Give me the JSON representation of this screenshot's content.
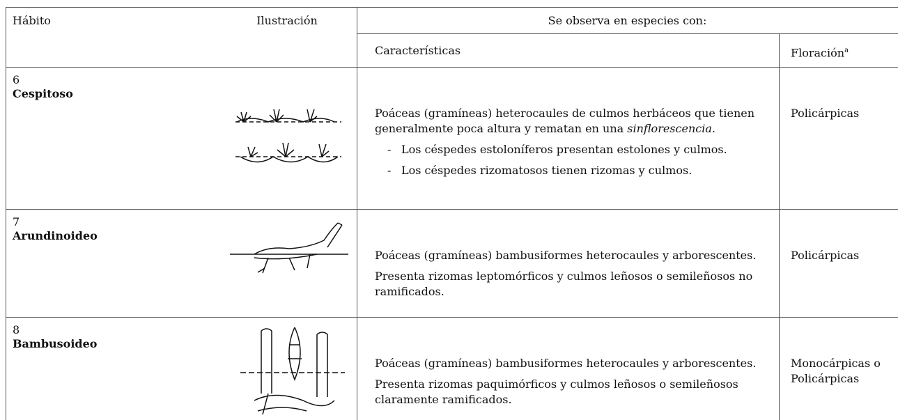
{
  "header": {
    "habit": "Hábito",
    "illustration": "Ilustración",
    "observed": "Se observa en especies con:",
    "features": "Características",
    "flowering": "Floración",
    "flowering_note": "a"
  },
  "bullet_marker": "-",
  "rows": [
    {
      "number": "6",
      "name": "Cespitoso",
      "description": {
        "before": "Poáceas (gramíneas) heterocaules de culmos herbáceos que tienen generalmente poca altura y rematan en una ",
        "italic": "sinflorescencia",
        "after": "."
      },
      "bullets": [
        "Los céspedes estoloníferos presentan estolones y culmos.",
        "Los céspedes rizomatosos tienen rizomas y culmos."
      ],
      "paragraphs": [],
      "flowering": [
        "Policárpicas"
      ]
    },
    {
      "number": "7",
      "name": "Arundinoideo",
      "paragraphs": [
        "Poáceas (gramíneas) bambusiformes heterocaules y arborescentes.",
        "Presenta rizomas leptomórficos y culmos leñosos o semileñosos no ramificados."
      ],
      "bullets": [],
      "flowering": [
        "Policárpicas"
      ]
    },
    {
      "number": "8",
      "name": "Bambusoideo",
      "paragraphs": [
        "Poáceas (gramíneas) bambusiformes heterocaules y arborescentes.",
        "Presenta rizomas paquimórficos y culmos leñosos o semileñosos claramente ramificados."
      ],
      "bullets": [],
      "flowering": [
        "Monocárpicas o",
        "Policárpicas"
      ]
    }
  ]
}
